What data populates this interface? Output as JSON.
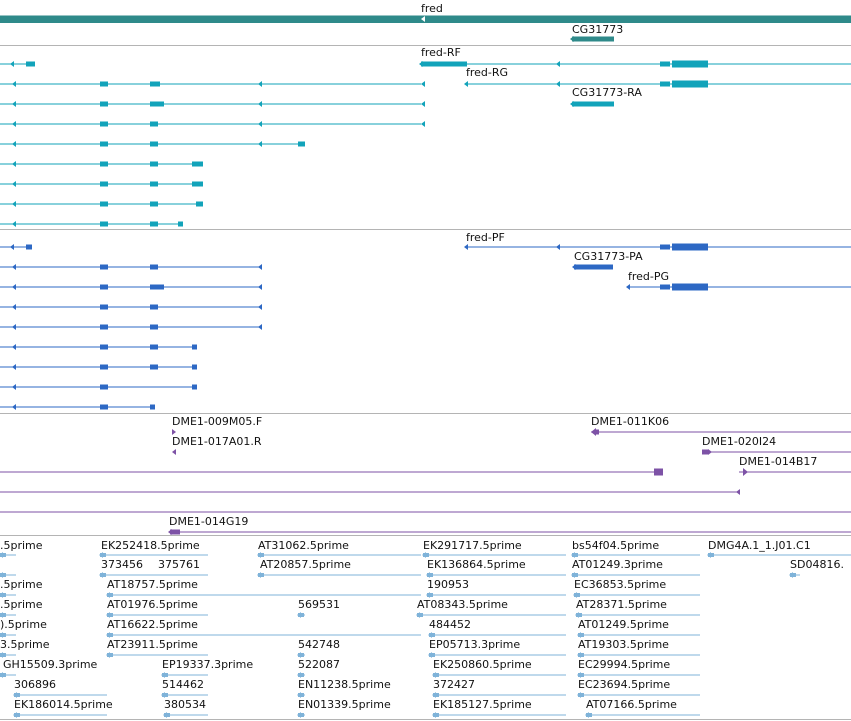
{
  "colors": {
    "gene": "#2f8a8a",
    "transcript": "#12a3ba",
    "protein": "#2d68c4",
    "clone": "#7d52a6",
    "est": "#7fb3d9",
    "separator": "#b4b4b4"
  },
  "tracks": {
    "gene": {
      "labels": [
        "fred",
        "CG31773"
      ]
    },
    "transcripts": {
      "labels": [
        "fred-RF",
        "fred-RG",
        "CG31773-RA"
      ]
    },
    "proteins": {
      "labels": [
        "fred-PF",
        "CG31773-PA",
        "fred-PG"
      ]
    },
    "clones": {
      "labels": [
        "DME1-009M05.F",
        "DME1-017A01.R",
        "DME1-011K06",
        "DME1-020I24",
        "DME1-014B17",
        "DME1-014G19"
      ]
    },
    "ests": {
      "labels": [
        ".5prime",
        "EK252418.5prime",
        "AT31062.5prime",
        "EK291717.5prime",
        "bs54f04.5prime",
        "DMG4A.1_1.J01.C1",
        "373456",
        "375761",
        "AT20857.5prime",
        "EK136864.5prime",
        "AT01249.3prime",
        "SD04816.",
        ".5prime",
        "AT18757.5prime",
        "190953",
        "EC36853.5prime",
        ".5prime",
        "AT01976.5prime",
        "569531",
        "AT08343.5prime",
        "AT28371.5prime",
        ").5prime",
        "AT16622.5prime",
        "484452",
        "AT01249.5prime",
        "3.5prime",
        "AT23911.5prime",
        "542748",
        "EP05713.3prime",
        "AT19303.5prime",
        "GH15509.3prime",
        "EP19337.3prime",
        "522087",
        "EK250860.5prime",
        "EC29994.5prime",
        "306896",
        "514462",
        "EN11238.5prime",
        "372427",
        "EC23694.5prime",
        "EK186014.5prime",
        "380534",
        "EN01339.5prime",
        "EK185127.5prime",
        "AT07166.5prime"
      ]
    }
  }
}
